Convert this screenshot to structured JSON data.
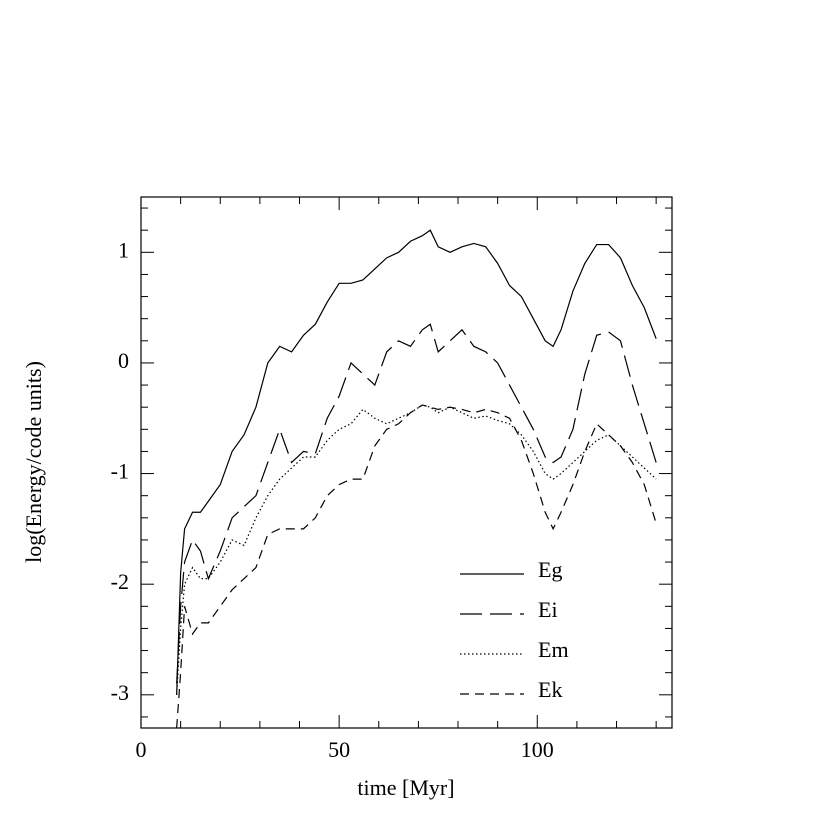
{
  "chart_data": {
    "type": "line",
    "xlabel": "time [Myr]",
    "ylabel": "log(Energy/code units)",
    "xlim": [
      0,
      134
    ],
    "ylim": [
      -3.3,
      1.5
    ],
    "xticks": [
      0,
      50,
      100
    ],
    "yticks": [
      -3,
      -2,
      -1,
      0,
      1
    ],
    "xminorticks": [
      10,
      20,
      30,
      40,
      60,
      70,
      80,
      90,
      110,
      120,
      130
    ],
    "yminorticks": [
      -3.2,
      -2.8,
      -2.6,
      -2.4,
      -2.2,
      -1.8,
      -1.6,
      -1.4,
      -1.2,
      -0.8,
      -0.6,
      -0.4,
      -0.2,
      0.2,
      0.4,
      0.6,
      0.8,
      1.2,
      1.4
    ],
    "x": [
      9,
      10,
      11,
      13,
      15,
      17,
      20,
      23,
      26,
      29,
      32,
      35,
      38,
      41,
      44,
      47,
      50,
      53,
      56,
      59,
      62,
      65,
      68,
      71,
      73,
      75,
      78,
      81,
      84,
      87,
      90,
      93,
      96,
      99,
      102,
      104,
      106,
      109,
      112,
      115,
      118,
      121,
      124,
      127,
      130
    ],
    "series": [
      {
        "name": "Eg",
        "color": "#000000",
        "dash": "solid",
        "values": [
          -3.0,
          -1.9,
          -1.5,
          -1.35,
          -1.35,
          -1.25,
          -1.1,
          -0.8,
          -0.65,
          -0.4,
          0.0,
          0.15,
          0.1,
          0.25,
          0.35,
          0.55,
          0.72,
          0.72,
          0.75,
          0.85,
          0.95,
          1.0,
          1.1,
          1.15,
          1.2,
          1.05,
          1.0,
          1.05,
          1.08,
          1.05,
          0.9,
          0.7,
          0.6,
          0.4,
          0.2,
          0.15,
          0.3,
          0.65,
          0.9,
          1.07,
          1.07,
          0.95,
          0.7,
          0.5,
          0.22
        ]
      },
      {
        "name": "Ei",
        "color": "#000000",
        "dash": "long-dash",
        "values": [
          -2.9,
          -2.2,
          -1.8,
          -1.6,
          -1.7,
          -1.95,
          -1.7,
          -1.4,
          -1.3,
          -1.2,
          -0.9,
          -0.6,
          -0.9,
          -0.8,
          -0.82,
          -0.5,
          -0.3,
          0.0,
          -0.1,
          -0.2,
          0.1,
          0.2,
          0.15,
          0.3,
          0.35,
          0.1,
          0.2,
          0.3,
          0.15,
          0.1,
          0.0,
          -0.2,
          -0.4,
          -0.6,
          -0.85,
          -0.9,
          -0.85,
          -0.6,
          -0.1,
          0.25,
          0.28,
          0.2,
          -0.2,
          -0.55,
          -0.9
        ]
      },
      {
        "name": "Em",
        "color": "#000000",
        "dash": "dotted",
        "values": [
          -3.0,
          -2.4,
          -2.0,
          -1.85,
          -1.95,
          -1.95,
          -1.8,
          -1.6,
          -1.65,
          -1.4,
          -1.2,
          -1.05,
          -0.95,
          -0.85,
          -0.85,
          -0.7,
          -0.6,
          -0.55,
          -0.42,
          -0.5,
          -0.55,
          -0.5,
          -0.45,
          -0.38,
          -0.4,
          -0.45,
          -0.4,
          -0.45,
          -0.5,
          -0.48,
          -0.52,
          -0.55,
          -0.65,
          -0.8,
          -1.0,
          -1.05,
          -1.0,
          -0.9,
          -0.8,
          -0.7,
          -0.65,
          -0.75,
          -0.85,
          -0.95,
          -1.05
        ]
      },
      {
        "name": "Ek",
        "color": "#000000",
        "dash": "dashed",
        "values": [
          -3.3,
          -2.8,
          -2.2,
          -2.45,
          -2.35,
          -2.35,
          -2.2,
          -2.05,
          -1.95,
          -1.85,
          -1.55,
          -1.5,
          -1.5,
          -1.5,
          -1.4,
          -1.2,
          -1.1,
          -1.05,
          -1.05,
          -0.75,
          -0.6,
          -0.55,
          -0.45,
          -0.38,
          -0.4,
          -0.42,
          -0.4,
          -0.42,
          -0.45,
          -0.42,
          -0.45,
          -0.5,
          -0.7,
          -1.0,
          -1.35,
          -1.5,
          -1.35,
          -1.1,
          -0.8,
          -0.55,
          -0.65,
          -0.75,
          -0.9,
          -1.1,
          -1.45
        ]
      }
    ]
  }
}
